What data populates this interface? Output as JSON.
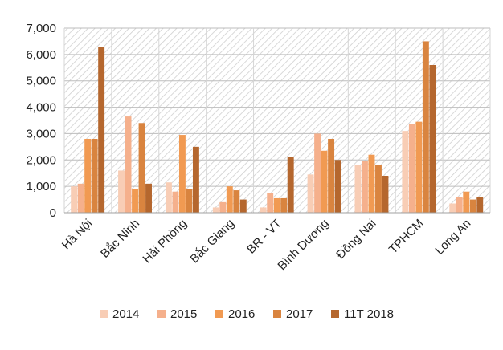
{
  "chart_data": {
    "type": "bar",
    "title": "",
    "xlabel": "",
    "ylabel": "",
    "ylim": [
      0,
      7000
    ],
    "yticks": [
      "0",
      "1,000",
      "2,000",
      "3,000",
      "4,000",
      "5,000",
      "6,000",
      "7,000"
    ],
    "ytick_values": [
      0,
      1000,
      2000,
      3000,
      4000,
      5000,
      6000,
      7000
    ],
    "background": "hatched",
    "legend_position": "bottom",
    "categories": [
      "Hà Nội",
      "Bắc Ninh",
      "Hải Phòng",
      "Bắc Giang",
      "BR - VT",
      "Bình Dương",
      "Đồng Nai",
      "TPHCM",
      "Long An"
    ],
    "series": [
      {
        "name": "2014",
        "color": "#f8cdb5",
        "values": [
          1000,
          1600,
          1150,
          200,
          200,
          1450,
          1800,
          3100,
          350
        ]
      },
      {
        "name": "2015",
        "color": "#f5b08c",
        "values": [
          1100,
          3650,
          800,
          400,
          750,
          3000,
          1950,
          3350,
          600
        ]
      },
      {
        "name": "2016",
        "color": "#f19a52",
        "values": [
          2800,
          900,
          2950,
          1000,
          550,
          2350,
          2200,
          3450,
          800
        ]
      },
      {
        "name": "2017",
        "color": "#d9843f",
        "values": [
          2800,
          3400,
          900,
          850,
          550,
          2800,
          1800,
          6500,
          500
        ]
      },
      {
        "name": "11T 2018",
        "color": "#b5672e",
        "values": [
          6300,
          1100,
          2500,
          500,
          2100,
          2000,
          1400,
          5600,
          600
        ]
      }
    ]
  }
}
